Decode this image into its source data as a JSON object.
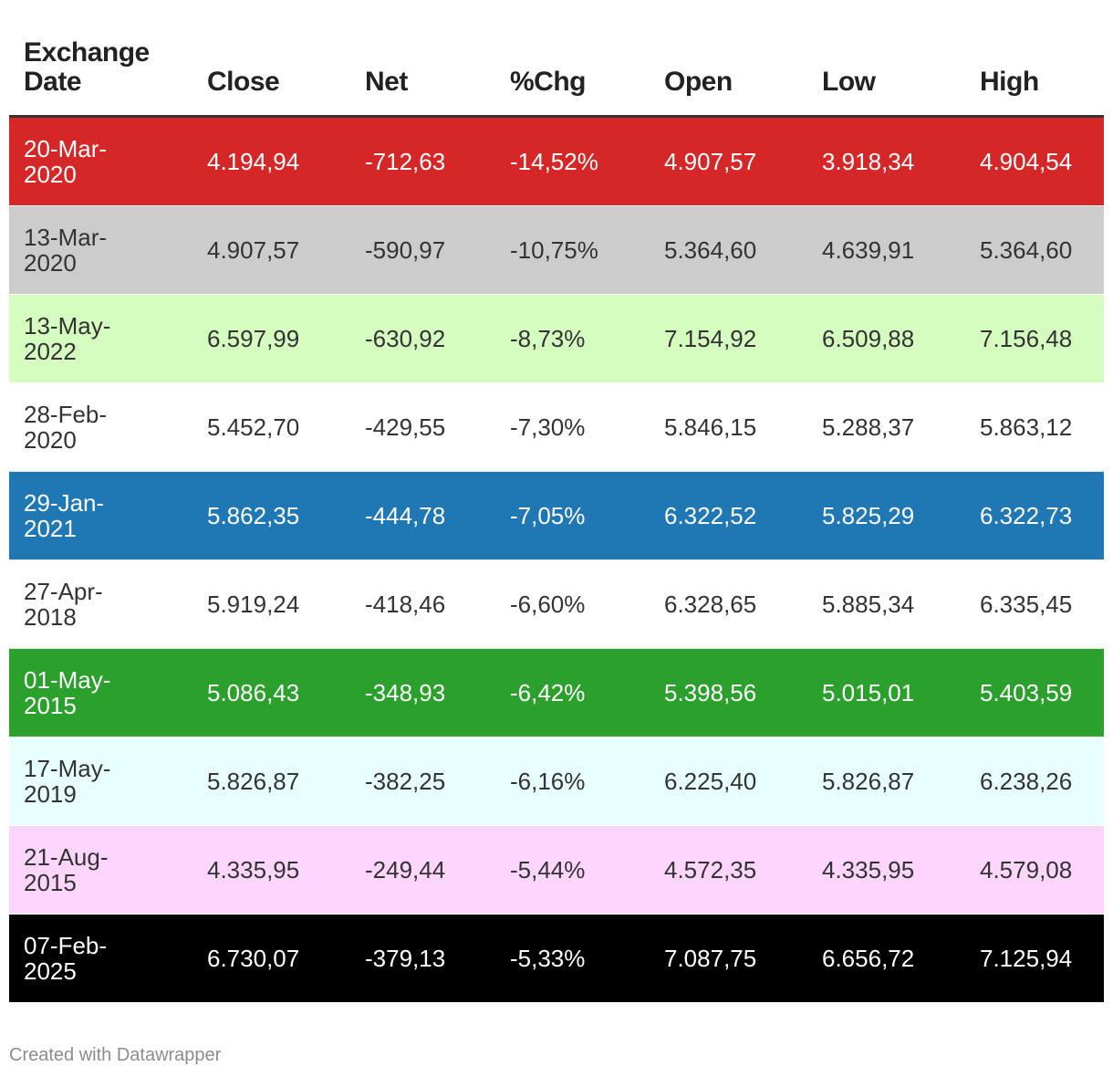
{
  "chart_data": {
    "type": "table",
    "columns": [
      "Exchange Date",
      "Close",
      "Net",
      "%Chg",
      "Open",
      "Low",
      "High"
    ],
    "rows": [
      {
        "date": "20-Mar-2020",
        "close": "4.194,94",
        "net": "-712,63",
        "chg": "-14,52%",
        "open": "4.907,57",
        "low": "3.918,34",
        "high": "4.904,54",
        "bg": "#d62728",
        "fg": "#ffffff"
      },
      {
        "date": "13-Mar-2020",
        "close": "4.907,57",
        "net": "-590,97",
        "chg": "-10,75%",
        "open": "5.364,60",
        "low": "4.639,91",
        "high": "5.364,60",
        "bg": "#cccccc",
        "fg": "#333333"
      },
      {
        "date": "13-May-2022",
        "close": "6.597,99",
        "net": "-630,92",
        "chg": "-8,73%",
        "open": "7.154,92",
        "low": "6.509,88",
        "high": "7.156,48",
        "bg": "#d5fdc0",
        "fg": "#333333"
      },
      {
        "date": "28-Feb-2020",
        "close": "5.452,70",
        "net": "-429,55",
        "chg": "-7,30%",
        "open": "5.846,15",
        "low": "5.288,37",
        "high": "5.863,12",
        "bg": "#ffffff",
        "fg": "#333333"
      },
      {
        "date": "29-Jan-2021",
        "close": "5.862,35",
        "net": "-444,78",
        "chg": "-7,05%",
        "open": "6.322,52",
        "low": "5.825,29",
        "high": "6.322,73",
        "bg": "#1f77b4",
        "fg": "#ffffff"
      },
      {
        "date": "27-Apr-2018",
        "close": "5.919,24",
        "net": "-418,46",
        "chg": "-6,60%",
        "open": "6.328,65",
        "low": "5.885,34",
        "high": "6.335,45",
        "bg": "#ffffff",
        "fg": "#333333"
      },
      {
        "date": "01-May-2015",
        "close": "5.086,43",
        "net": "-348,93",
        "chg": "-6,42%",
        "open": "5.398,56",
        "low": "5.015,01",
        "high": "5.403,59",
        "bg": "#2ca02c",
        "fg": "#ffffff"
      },
      {
        "date": "17-May-2019",
        "close": "5.826,87",
        "net": "-382,25",
        "chg": "-6,16%",
        "open": "6.225,40",
        "low": "5.826,87",
        "high": "6.238,26",
        "bg": "#e7fffd",
        "fg": "#333333"
      },
      {
        "date": "21-Aug-2015",
        "close": "4.335,95",
        "net": "-249,44",
        "chg": "-5,44%",
        "open": "4.572,35",
        "low": "4.335,95",
        "high": "4.579,08",
        "bg": "#fdd5fd",
        "fg": "#333333"
      },
      {
        "date": "07-Feb-2025",
        "close": "6.730,07",
        "net": "-379,13",
        "chg": "-5,33%",
        "open": "7.087,75",
        "low": "6.656,72",
        "high": "7.125,94",
        "bg": "#000000",
        "fg": "#ffffff"
      }
    ]
  },
  "footer": {
    "credit": "Created with Datawrapper"
  }
}
